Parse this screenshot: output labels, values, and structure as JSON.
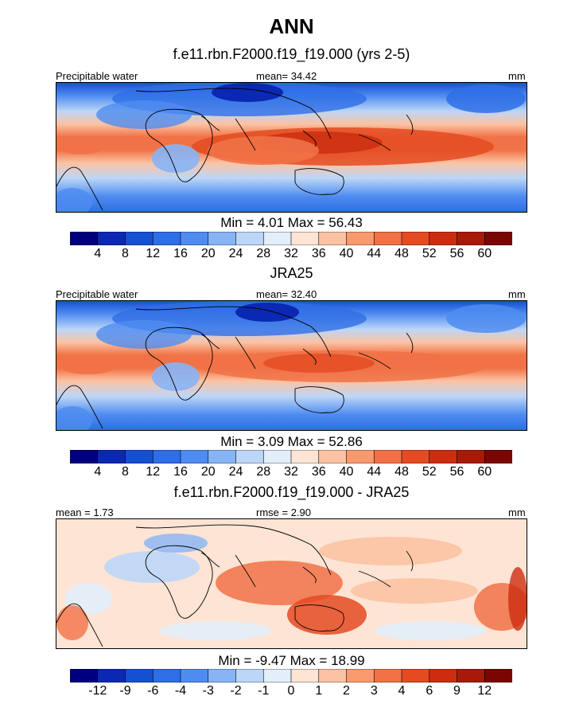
{
  "title": "ANN",
  "panels": [
    {
      "id": "model",
      "subtitle": "f.e11.rbn.F2000.f19_f19.000 (yrs 2-5)",
      "left_label": "Precipitable water",
      "center_label": "mean=  34.42",
      "right_label": "mm",
      "stats": "Min =   4.01 Max =  56.43"
    },
    {
      "id": "obs",
      "subtitle": "JRA25",
      "left_label": "Precipitable water",
      "center_label": "mean=  32.40",
      "right_label": "mm",
      "stats": "Min =   3.09 Max =  52.86"
    },
    {
      "id": "diff",
      "subtitle": "f.e11.rbn.F2000.f19_f19.000 - JRA25",
      "left_label": "mean =   1.73",
      "center_label": "rmse =   2.90",
      "right_label": "mm",
      "stats": "Min =  -9.47 Max =  18.99"
    }
  ],
  "colorbar_colors": [
    "#00007f",
    "#0a28b4",
    "#1650d2",
    "#2e6ee6",
    "#4f8cf0",
    "#87b4f5",
    "#bcd6f7",
    "#e2eefa",
    "#fde4d4",
    "#fbc3a3",
    "#f89a6f",
    "#f17246",
    "#e44b22",
    "#cc2d10",
    "#a81a08",
    "#7a0604"
  ],
  "chart_data": [
    {
      "type": "heatmap",
      "name": "f.e11.rbn.F2000.f19_f19.000 (yrs 2-5) Precipitable water",
      "units": "mm",
      "mean": 34.42,
      "min": 4.01,
      "max": 56.43,
      "levels": [
        4,
        8,
        12,
        16,
        20,
        24,
        28,
        32,
        36,
        40,
        44,
        48,
        52,
        56,
        60
      ],
      "level_labels": [
        "4",
        "8",
        "12",
        "16",
        "20",
        "24",
        "28",
        "32",
        "36",
        "40",
        "44",
        "48",
        "52",
        "56",
        "60"
      ]
    },
    {
      "type": "heatmap",
      "name": "JRA25 Precipitable water",
      "units": "mm",
      "mean": 32.4,
      "min": 3.09,
      "max": 52.86,
      "levels": [
        4,
        8,
        12,
        16,
        20,
        24,
        28,
        32,
        36,
        40,
        44,
        48,
        52,
        56,
        60
      ],
      "level_labels": [
        "4",
        "8",
        "12",
        "16",
        "20",
        "24",
        "28",
        "32",
        "36",
        "40",
        "44",
        "48",
        "52",
        "56",
        "60"
      ]
    },
    {
      "type": "heatmap",
      "name": "f.e11.rbn.F2000.f19_f19.000 - JRA25",
      "units": "mm",
      "mean": 1.73,
      "rmse": 2.9,
      "min": -9.47,
      "max": 18.99,
      "levels": [
        -12,
        -9,
        -6,
        -4,
        -3,
        -2,
        -1,
        0,
        1,
        2,
        3,
        4,
        6,
        9,
        12
      ],
      "level_labels": [
        "-12",
        "-9",
        "-6",
        "-4",
        "-3",
        "-2",
        "-1",
        "0",
        "1",
        "2",
        "3",
        "4",
        "6",
        "9",
        "12"
      ]
    }
  ]
}
